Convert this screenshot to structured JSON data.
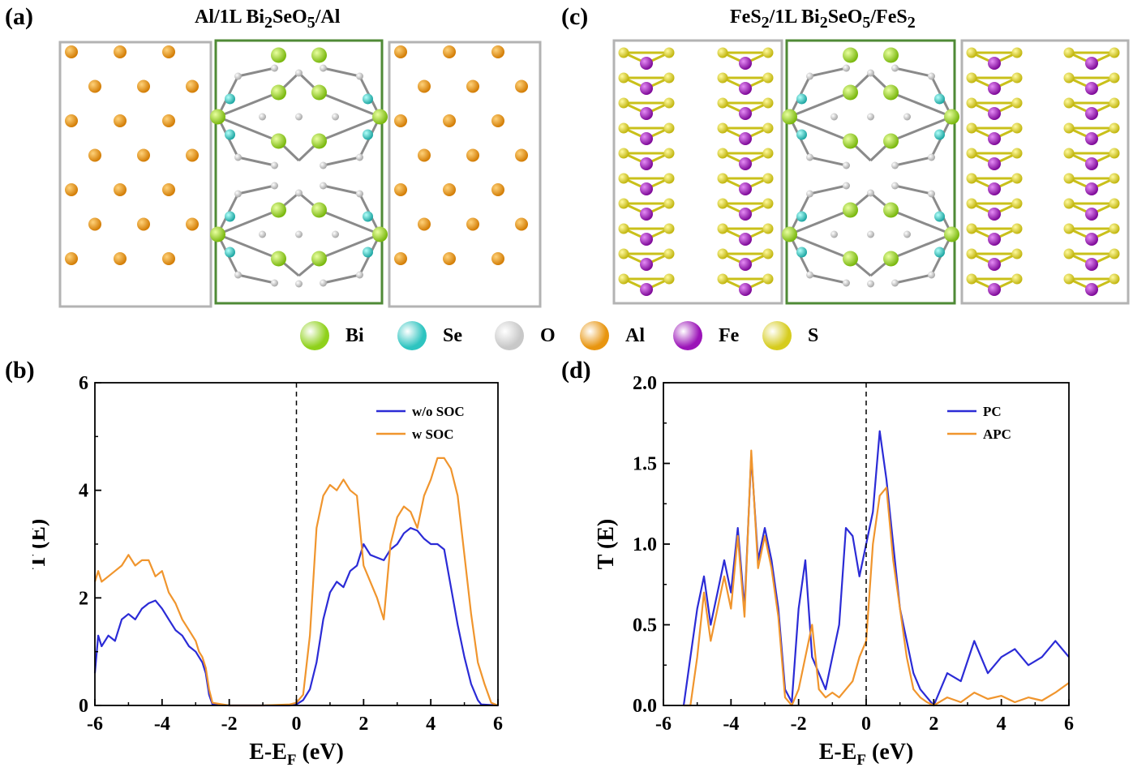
{
  "panels": {
    "a": {
      "label": "(a)",
      "title": "Al/1L Bi2SeO5/Al"
    },
    "b": {
      "label": "(b)"
    },
    "c": {
      "label": "(c)",
      "title": "FeS2/1L Bi2SeO5/FeS2"
    },
    "d": {
      "label": "(d)"
    }
  },
  "atom_legend": [
    {
      "name": "Bi",
      "color": "#8fd11b"
    },
    {
      "name": "Se",
      "color": "#2ec4c0"
    },
    {
      "name": "O",
      "color": "#c8c8c8"
    },
    {
      "name": "Al",
      "color": "#e8950f"
    },
    {
      "name": "Fe",
      "color": "#9b14b8"
    },
    {
      "name": "S",
      "color": "#d6cc1e"
    }
  ],
  "colors": {
    "frame_gray": "#b3b3b3",
    "frame_green": "#4f8a36",
    "blue": "#2b2bd6",
    "orange": "#f0952d"
  },
  "chart_data": [
    {
      "type": "line",
      "panel": "b",
      "xlabel": "E-EF (eV)",
      "ylabel": "T (E)",
      "xlim": [
        -6,
        6
      ],
      "ylim": [
        0,
        6
      ],
      "xticks": [
        "-6",
        "-4",
        "-2",
        "0",
        "2",
        "4",
        "6"
      ],
      "yticks": [
        "0",
        "2",
        "4",
        "6"
      ],
      "legend_position": "top-right",
      "reference_line_x": 0,
      "series": [
        {
          "name": "w/o SOC",
          "color": "#2b2bd6",
          "x": [
            -6,
            -5.9,
            -5.8,
            -5.6,
            -5.4,
            -5.2,
            -5.0,
            -4.8,
            -4.6,
            -4.4,
            -4.2,
            -4.0,
            -3.8,
            -3.6,
            -3.4,
            -3.2,
            -3.0,
            -2.9,
            -2.8,
            -2.7,
            -2.6,
            -2.5,
            -2.0,
            -1.0,
            -0.2,
            0,
            0.2,
            0.4,
            0.6,
            0.8,
            1.0,
            1.2,
            1.4,
            1.6,
            1.8,
            2.0,
            2.2,
            2.4,
            2.6,
            2.8,
            3.0,
            3.2,
            3.4,
            3.6,
            3.8,
            4.0,
            4.2,
            4.4,
            4.6,
            4.8,
            5.0,
            5.2,
            5.4,
            5.5,
            6.0
          ],
          "y": [
            0.6,
            1.3,
            1.1,
            1.3,
            1.2,
            1.6,
            1.7,
            1.6,
            1.8,
            1.9,
            1.95,
            1.8,
            1.6,
            1.4,
            1.3,
            1.1,
            1.0,
            0.9,
            0.8,
            0.6,
            0.2,
            0.02,
            0.0,
            0.0,
            0.0,
            0.02,
            0.1,
            0.3,
            0.8,
            1.6,
            2.1,
            2.3,
            2.2,
            2.5,
            2.6,
            3.0,
            2.8,
            2.75,
            2.7,
            2.9,
            3.0,
            3.2,
            3.3,
            3.25,
            3.1,
            3.0,
            3.0,
            2.9,
            2.2,
            1.5,
            0.9,
            0.4,
            0.1,
            0.02,
            0.0
          ]
        },
        {
          "name": "w SOC",
          "color": "#f0952d",
          "x": [
            -6,
            -5.9,
            -5.8,
            -5.6,
            -5.4,
            -5.2,
            -5.0,
            -4.8,
            -4.6,
            -4.4,
            -4.2,
            -4.0,
            -3.8,
            -3.6,
            -3.4,
            -3.2,
            -3.0,
            -2.9,
            -2.8,
            -2.7,
            -2.6,
            -2.5,
            -2.0,
            -1.0,
            -0.2,
            0,
            0.2,
            0.4,
            0.6,
            0.8,
            1.0,
            1.2,
            1.4,
            1.6,
            1.8,
            2.0,
            2.2,
            2.4,
            2.6,
            2.8,
            3.0,
            3.2,
            3.4,
            3.6,
            3.8,
            4.0,
            4.2,
            4.4,
            4.6,
            4.8,
            5.0,
            5.2,
            5.4,
            5.6,
            5.8,
            6.0
          ],
          "y": [
            2.3,
            2.5,
            2.3,
            2.4,
            2.5,
            2.6,
            2.8,
            2.6,
            2.7,
            2.7,
            2.4,
            2.5,
            2.1,
            1.9,
            1.6,
            1.4,
            1.2,
            1.0,
            0.9,
            0.7,
            0.3,
            0.05,
            0.0,
            0.0,
            0.02,
            0.05,
            0.2,
            1.3,
            3.3,
            3.9,
            4.1,
            4.0,
            4.2,
            4.0,
            3.9,
            2.6,
            2.3,
            2.0,
            1.6,
            3.0,
            3.5,
            3.7,
            3.6,
            3.3,
            3.9,
            4.2,
            4.6,
            4.6,
            4.4,
            3.9,
            2.8,
            1.7,
            0.8,
            0.4,
            0.05,
            0.0
          ]
        }
      ]
    },
    {
      "type": "line",
      "panel": "d",
      "xlabel": "E-EF (eV)",
      "ylabel": "T (E)",
      "xlim": [
        -6,
        6
      ],
      "ylim": [
        0,
        2.0
      ],
      "xticks": [
        "-6",
        "-4",
        "-2",
        "0",
        "2",
        "4",
        "6"
      ],
      "yticks": [
        "0.0",
        "0.5",
        "1.0",
        "1.5",
        "2.0"
      ],
      "legend_position": "top-right",
      "reference_line_x": 0,
      "series": [
        {
          "name": "PC",
          "color": "#2b2bd6",
          "x": [
            -5.4,
            -5.2,
            -5.0,
            -4.8,
            -4.6,
            -4.4,
            -4.2,
            -4.0,
            -3.8,
            -3.6,
            -3.4,
            -3.2,
            -3.0,
            -2.8,
            -2.6,
            -2.4,
            -2.2,
            -2.0,
            -1.8,
            -1.6,
            -1.4,
            -1.2,
            -1.0,
            -0.8,
            -0.6,
            -0.4,
            -0.2,
            0,
            0.2,
            0.4,
            0.6,
            0.8,
            1.0,
            1.2,
            1.4,
            1.6,
            1.8,
            2.0,
            2.4,
            2.8,
            3.2,
            3.6,
            4.0,
            4.4,
            4.8,
            5.2,
            5.6,
            6.0
          ],
          "y": [
            0.0,
            0.3,
            0.6,
            0.8,
            0.5,
            0.7,
            0.9,
            0.7,
            1.1,
            0.6,
            1.55,
            0.9,
            1.1,
            0.9,
            0.6,
            0.1,
            0.02,
            0.6,
            0.9,
            0.3,
            0.2,
            0.1,
            0.3,
            0.5,
            1.1,
            1.05,
            0.8,
            1.0,
            1.2,
            1.7,
            1.4,
            1.0,
            0.6,
            0.4,
            0.2,
            0.1,
            0.05,
            0.0,
            0.2,
            0.15,
            0.4,
            0.2,
            0.3,
            0.35,
            0.25,
            0.3,
            0.4,
            0.3
          ]
        },
        {
          "name": "APC",
          "color": "#f0952d",
          "x": [
            -5.4,
            -5.2,
            -5.0,
            -4.8,
            -4.6,
            -4.4,
            -4.2,
            -4.0,
            -3.8,
            -3.6,
            -3.4,
            -3.2,
            -3.0,
            -2.8,
            -2.6,
            -2.4,
            -2.2,
            -2.0,
            -1.8,
            -1.6,
            -1.4,
            -1.2,
            -1.0,
            -0.8,
            -0.6,
            -0.4,
            -0.2,
            0,
            0.2,
            0.4,
            0.6,
            0.8,
            1.0,
            1.2,
            1.4,
            1.6,
            1.8,
            2.0,
            2.4,
            2.8,
            3.2,
            3.6,
            4.0,
            4.4,
            4.8,
            5.2,
            5.6,
            6.0
          ],
          "y": [
            0.0,
            0.0,
            0.3,
            0.7,
            0.4,
            0.6,
            0.8,
            0.6,
            1.05,
            0.55,
            1.58,
            0.85,
            1.05,
            0.85,
            0.55,
            0.05,
            0.0,
            0.1,
            0.3,
            0.5,
            0.1,
            0.05,
            0.08,
            0.05,
            0.1,
            0.15,
            0.3,
            0.4,
            1.0,
            1.3,
            1.35,
            0.9,
            0.6,
            0.3,
            0.1,
            0.05,
            0.02,
            0.0,
            0.05,
            0.02,
            0.08,
            0.04,
            0.06,
            0.02,
            0.05,
            0.03,
            0.08,
            0.14
          ]
        }
      ]
    }
  ]
}
